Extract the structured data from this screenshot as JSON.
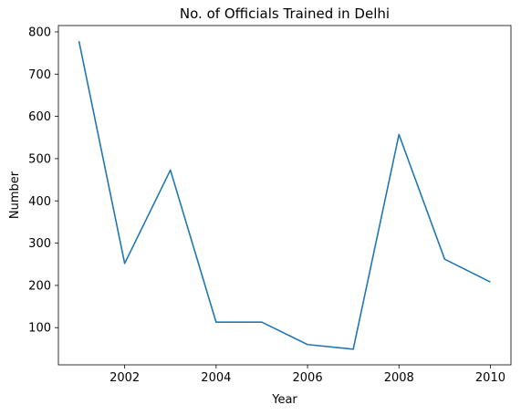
{
  "chart_data": {
    "type": "line",
    "title": "No. of Officials Trained in Delhi",
    "xlabel": "Year",
    "ylabel": "Number",
    "x": [
      2001,
      2002,
      2003,
      2004,
      2005,
      2006,
      2007,
      2008,
      2009,
      2010
    ],
    "series": [
      {
        "values": [
          778,
          252,
          473,
          113,
          113,
          60,
          49,
          557,
          262,
          208
        ]
      }
    ],
    "xlim": [
      2000.55,
      2010.45
    ],
    "ylim": [
      12,
      815
    ],
    "xticks": [
      "2002",
      "2004",
      "2006",
      "2008",
      "2010"
    ],
    "yticks": [
      "100",
      "200",
      "300",
      "400",
      "500",
      "600",
      "700",
      "800"
    ],
    "grid": false,
    "line_color": "#1f77b4"
  }
}
